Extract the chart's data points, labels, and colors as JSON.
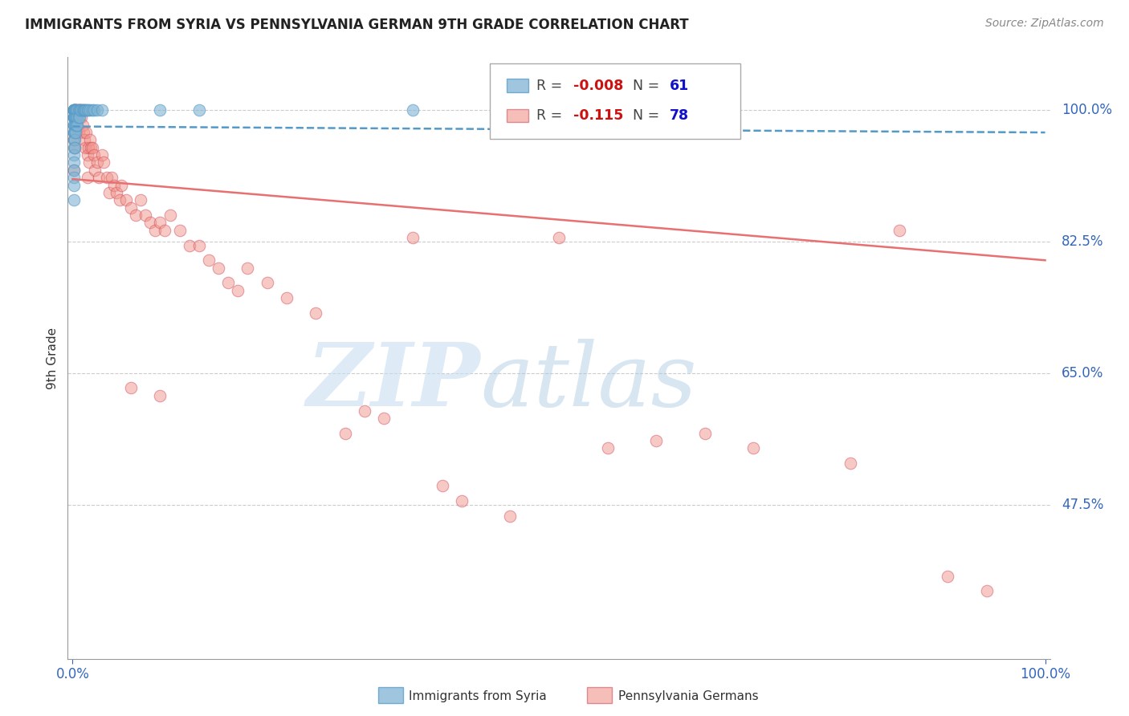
{
  "title": "IMMIGRANTS FROM SYRIA VS PENNSYLVANIA GERMAN 9TH GRADE CORRELATION CHART",
  "source": "Source: ZipAtlas.com",
  "ylabel": "9th Grade",
  "ytick_labels": [
    "100.0%",
    "82.5%",
    "65.0%",
    "47.5%"
  ],
  "ytick_values": [
    1.0,
    0.825,
    0.65,
    0.475
  ],
  "blue_color": "#7FB3D3",
  "pink_color": "#F1948A",
  "blue_line_color": "#5499C7",
  "pink_line_color": "#E87070",
  "ylim": [
    0.27,
    1.07
  ],
  "xlim": [
    -0.005,
    1.005
  ],
  "blue_trend_y_start": 0.978,
  "blue_trend_y_end": 0.97,
  "pink_trend_y_start": 0.908,
  "pink_trend_y_end": 0.8,
  "blue_x": [
    0.001,
    0.001,
    0.001,
    0.001,
    0.001,
    0.001,
    0.001,
    0.001,
    0.001,
    0.001,
    0.001,
    0.001,
    0.001,
    0.001,
    0.001,
    0.001,
    0.001,
    0.001,
    0.001,
    0.001,
    0.002,
    0.002,
    0.002,
    0.002,
    0.002,
    0.002,
    0.002,
    0.002,
    0.003,
    0.003,
    0.003,
    0.003,
    0.003,
    0.004,
    0.004,
    0.004,
    0.005,
    0.005,
    0.005,
    0.006,
    0.006,
    0.007,
    0.007,
    0.008,
    0.009,
    0.01,
    0.011,
    0.012,
    0.013,
    0.014,
    0.015,
    0.016,
    0.018,
    0.02,
    0.022,
    0.025,
    0.03,
    0.09,
    0.13,
    0.35,
    0.5
  ],
  "blue_y": [
    1.0,
    1.0,
    1.0,
    1.0,
    1.0,
    0.99,
    0.99,
    0.99,
    0.98,
    0.98,
    0.97,
    0.97,
    0.96,
    0.95,
    0.94,
    0.93,
    0.92,
    0.91,
    0.9,
    0.88,
    1.0,
    1.0,
    0.99,
    0.99,
    0.98,
    0.97,
    0.96,
    0.95,
    1.0,
    1.0,
    0.99,
    0.98,
    0.97,
    1.0,
    0.99,
    0.98,
    1.0,
    0.99,
    0.98,
    1.0,
    0.99,
    1.0,
    0.99,
    1.0,
    1.0,
    1.0,
    1.0,
    1.0,
    1.0,
    1.0,
    1.0,
    1.0,
    1.0,
    1.0,
    1.0,
    1.0,
    1.0,
    1.0,
    1.0,
    1.0,
    1.0
  ],
  "pink_x": [
    0.001,
    0.001,
    0.002,
    0.002,
    0.003,
    0.004,
    0.004,
    0.005,
    0.006,
    0.006,
    0.007,
    0.008,
    0.009,
    0.01,
    0.01,
    0.011,
    0.012,
    0.013,
    0.014,
    0.015,
    0.015,
    0.016,
    0.017,
    0.018,
    0.019,
    0.02,
    0.022,
    0.023,
    0.025,
    0.027,
    0.03,
    0.032,
    0.035,
    0.038,
    0.04,
    0.043,
    0.045,
    0.048,
    0.05,
    0.055,
    0.06,
    0.065,
    0.07,
    0.075,
    0.08,
    0.085,
    0.09,
    0.095,
    0.1,
    0.11,
    0.12,
    0.13,
    0.14,
    0.15,
    0.16,
    0.17,
    0.18,
    0.2,
    0.22,
    0.25,
    0.28,
    0.3,
    0.32,
    0.35,
    0.38,
    0.4,
    0.45,
    0.5,
    0.55,
    0.6,
    0.65,
    0.7,
    0.8,
    0.85,
    0.9,
    0.94,
    0.06,
    0.09
  ],
  "pink_y": [
    0.96,
    0.92,
    0.99,
    0.95,
    1.0,
    1.0,
    0.97,
    0.98,
    1.0,
    0.97,
    1.0,
    1.0,
    0.99,
    1.0,
    0.98,
    0.97,
    0.96,
    0.95,
    0.97,
    0.94,
    0.91,
    0.95,
    0.93,
    0.96,
    0.95,
    0.95,
    0.94,
    0.92,
    0.93,
    0.91,
    0.94,
    0.93,
    0.91,
    0.89,
    0.91,
    0.9,
    0.89,
    0.88,
    0.9,
    0.88,
    0.87,
    0.86,
    0.88,
    0.86,
    0.85,
    0.84,
    0.85,
    0.84,
    0.86,
    0.84,
    0.82,
    0.82,
    0.8,
    0.79,
    0.77,
    0.76,
    0.79,
    0.77,
    0.75,
    0.73,
    0.57,
    0.6,
    0.59,
    0.83,
    0.5,
    0.48,
    0.46,
    0.83,
    0.55,
    0.56,
    0.57,
    0.55,
    0.53,
    0.84,
    0.38,
    0.36,
    0.63,
    0.62
  ],
  "leg_r_blue": "-0.008",
  "leg_n_blue": "61",
  "leg_r_pink": "-0.115",
  "leg_n_pink": "78"
}
